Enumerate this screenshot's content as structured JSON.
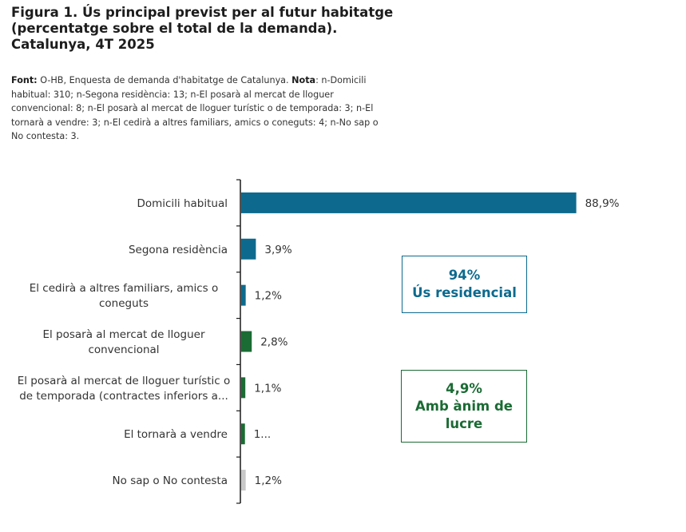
{
  "title_lines": [
    "Figura 1. Ús principal previst per al futur habitatge",
    "(percentatge sobre el total de la demanda).",
    "Catalunya, 4T 2025"
  ],
  "note": {
    "source_label": "Font:",
    "source_text": " O-HB, Enquesta de demanda d'habitatge de Catalunya. ",
    "note_label": "Nota",
    "note_text": ": n-Domicili habitual: 310; n-Segona residència: 13; n-El posarà al mercat de lloguer convencional: 8; n-El posarà al mercat de lloguer turístic o de temporada: 3; n-El tornarà a vendre: 3; n-El cedirà a altres familiars, amics o coneguts: 4; n-No sap o No contesta: 3."
  },
  "chart_data": {
    "type": "bar",
    "orientation": "horizontal",
    "categories": [
      "Domicili habitual",
      "Segona residència",
      "El cedirà a altres familiars, amics o coneguts",
      "El posarà al mercat de lloguer convencional",
      "El posarà al mercat de lloguer turístic o de temporada (contractes inferiors a...",
      "El tornarà a vendre",
      "No sap o No contesta"
    ],
    "category_label_lines": [
      [
        "Domicili habitual"
      ],
      [
        "Segona residència"
      ],
      [
        "El cedirà a altres familiars, amics o",
        "coneguts"
      ],
      [
        "El posarà al mercat de lloguer",
        "convencional"
      ],
      [
        "El posarà al mercat de lloguer turístic o",
        "de temporada (contractes inferiors a..."
      ],
      [
        "El tornarà a vendre"
      ],
      [
        "No sap o No contesta"
      ]
    ],
    "values": [
      88.9,
      3.9,
      1.2,
      2.8,
      1.1,
      1.0,
      1.2
    ],
    "data_labels": [
      "88,9%",
      "3,9%",
      "1,2%",
      "2,8%",
      "1,1%",
      "1...",
      "1,2%"
    ],
    "bar_colors": [
      "#0d6a8e",
      "#0d6a8e",
      "#0d6a8e",
      "#1b6b34",
      "#1b6b34",
      "#1b6b34",
      "#c8c8c8"
    ],
    "xlim": [
      0,
      100
    ],
    "grid": false,
    "legend": "none"
  },
  "callouts": {
    "residential": {
      "value": "94%",
      "label": "Ús residencial",
      "color": "#0d6a8e"
    },
    "profit": {
      "value": "4,9%",
      "label_lines": [
        "Amb ànim de",
        "lucre"
      ],
      "color": "#1b6b34"
    }
  }
}
